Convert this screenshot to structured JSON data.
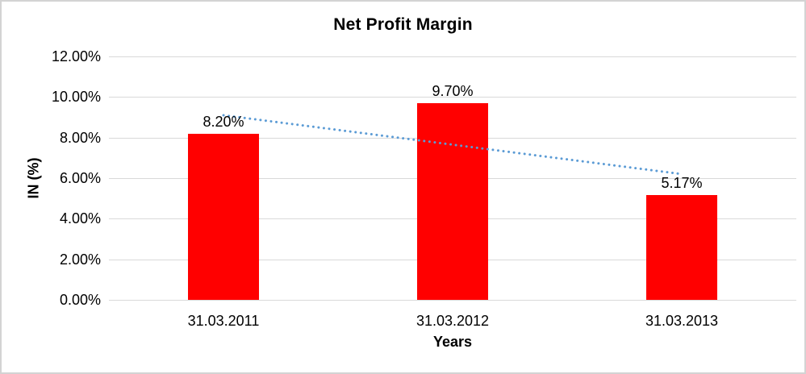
{
  "chart_data": {
    "type": "bar",
    "title": "Net Profit Margin",
    "categories": [
      "31.03.2011",
      "31.03.2012",
      "31.03.2013"
    ],
    "values": [
      8.2,
      9.7,
      5.17
    ],
    "value_labels": [
      "8.20%",
      "9.70%",
      "5.17%"
    ],
    "xlabel": "Years",
    "ylabel": "IN (%)",
    "ylim": [
      0,
      12
    ],
    "ytick_step": 2,
    "ytick_labels": [
      "0.00%",
      "2.00%",
      "4.00%",
      "6.00%",
      "8.00%",
      "10.00%",
      "12.00%"
    ],
    "grid": true,
    "legend_position": "none",
    "bar_color": "#FF0000",
    "gridline_color": "#D9D9D9",
    "text_color": "#000000",
    "trendline": {
      "type": "linear",
      "style": "dotted",
      "color": "#5B9BD5",
      "start_value": 9.1,
      "end_value": 6.2
    }
  }
}
